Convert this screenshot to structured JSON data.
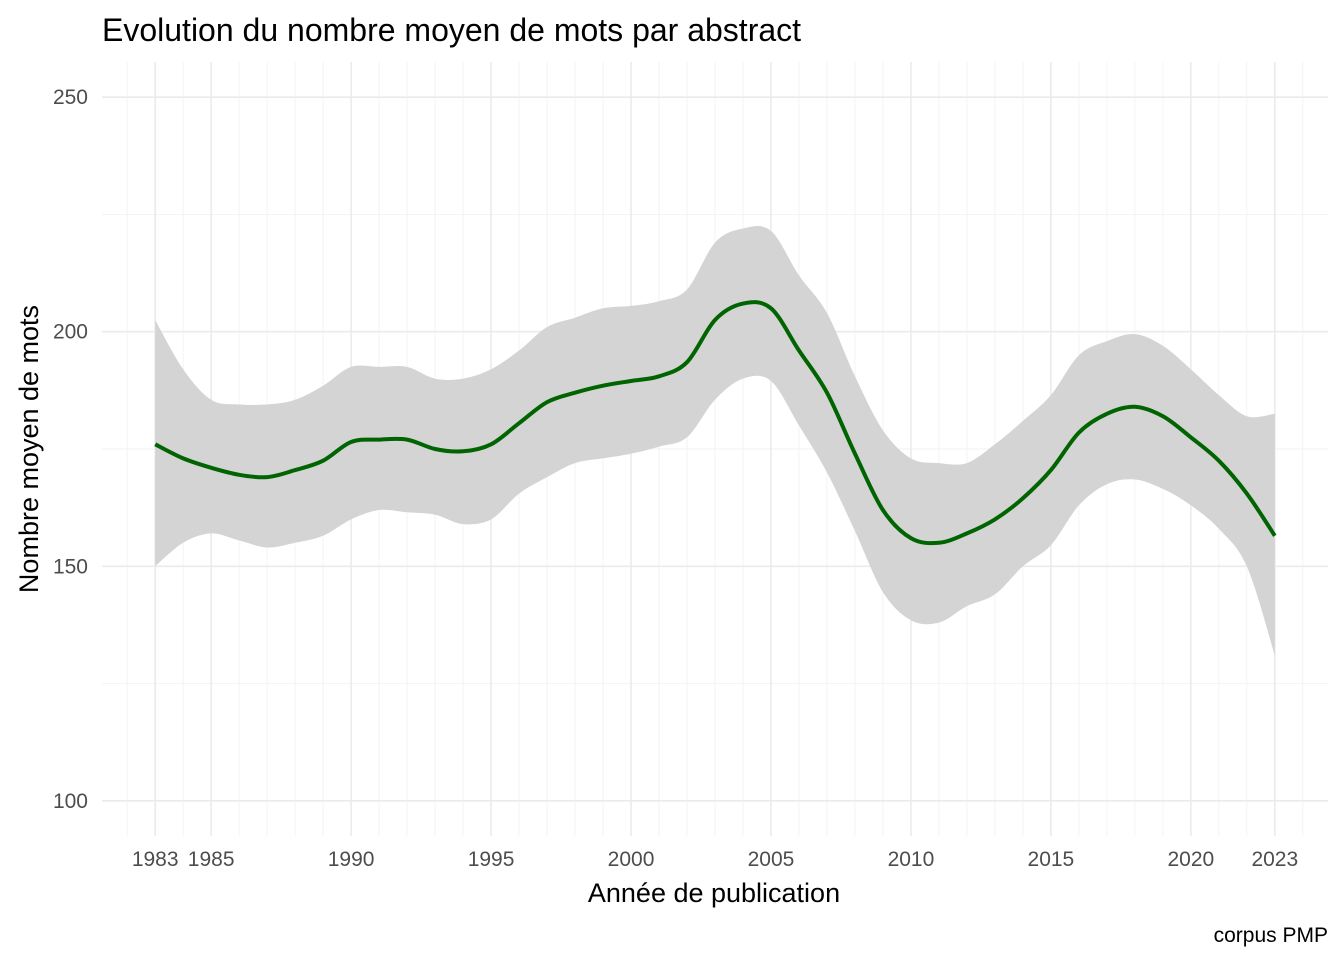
{
  "chart_data": {
    "type": "line",
    "title": "Evolution du nombre moyen de mots par abstract",
    "xlabel": "Année de publication",
    "ylabel": "Nombre moyen de mots",
    "caption": "corpus PMP",
    "xlim": [
      1981.1,
      2024.9
    ],
    "ylim": [
      92.5,
      257.5
    ],
    "x_ticks": [
      1983,
      1985,
      1990,
      1995,
      2000,
      2005,
      2010,
      2015,
      2020,
      2023
    ],
    "x_minor_ticks": [
      1982,
      1984,
      1986,
      1987,
      1988,
      1989,
      1991,
      1992,
      1993,
      1994,
      1996,
      1997,
      1998,
      1999,
      2001,
      2002,
      2003,
      2004,
      2006,
      2007,
      2008,
      2009,
      2011,
      2012,
      2013,
      2014,
      2016,
      2017,
      2018,
      2019,
      2021,
      2022,
      2024
    ],
    "y_ticks": [
      100,
      150,
      200,
      250
    ],
    "y_minor_ticks": [
      125,
      175,
      225
    ],
    "grid": true,
    "line_color": "#006400",
    "ribbon_color": "#d4d4d4",
    "series": [
      {
        "x": [
          1983,
          1984,
          1985,
          1986,
          1987,
          1988,
          1989,
          1990,
          1991,
          1992,
          1993,
          1994,
          1995,
          1996,
          1997,
          1998,
          1999,
          2000,
          2001,
          2002,
          2003,
          2004,
          2005,
          2006,
          2007,
          2008,
          2009,
          2010,
          2011,
          2012,
          2013,
          2014,
          2015,
          2016,
          2017,
          2018,
          2019,
          2020,
          2021,
          2022,
          2023
        ],
        "y": [
          176.0,
          173.0,
          171.0,
          169.5,
          169.0,
          170.5,
          172.5,
          176.5,
          177.0,
          177.0,
          175.0,
          174.5,
          176.0,
          180.5,
          185.0,
          187.0,
          188.5,
          189.5,
          190.5,
          193.5,
          202.5,
          206.0,
          205.0,
          196.0,
          187.0,
          174.0,
          162.0,
          156.0,
          155.0,
          157.0,
          160.0,
          164.5,
          170.5,
          178.5,
          182.5,
          184.0,
          182.0,
          177.5,
          172.5,
          165.5,
          156.5
        ],
        "lower": [
          150.0,
          155.0,
          157.0,
          155.5,
          154.0,
          155.0,
          156.5,
          160.0,
          162.0,
          161.5,
          161.0,
          159.0,
          160.0,
          165.5,
          169.0,
          172.0,
          173.0,
          174.0,
          175.5,
          177.5,
          185.5,
          190.0,
          189.5,
          180.0,
          170.0,
          157.5,
          144.5,
          138.5,
          138.0,
          141.5,
          144.0,
          150.0,
          154.5,
          163.0,
          167.5,
          168.5,
          166.5,
          163.0,
          158.0,
          150.0,
          131.0
        ],
        "upper": [
          202.5,
          192.0,
          185.5,
          184.5,
          184.5,
          185.5,
          188.5,
          192.5,
          192.5,
          192.5,
          190.0,
          190.0,
          192.0,
          196.0,
          201.0,
          203.0,
          205.0,
          205.5,
          206.5,
          209.0,
          219.0,
          222.0,
          221.5,
          212.0,
          204.0,
          190.5,
          179.0,
          173.0,
          172.0,
          172.0,
          176.0,
          181.0,
          186.5,
          195.0,
          198.0,
          199.5,
          197.0,
          192.0,
          186.5,
          182.0,
          182.5
        ]
      }
    ]
  }
}
